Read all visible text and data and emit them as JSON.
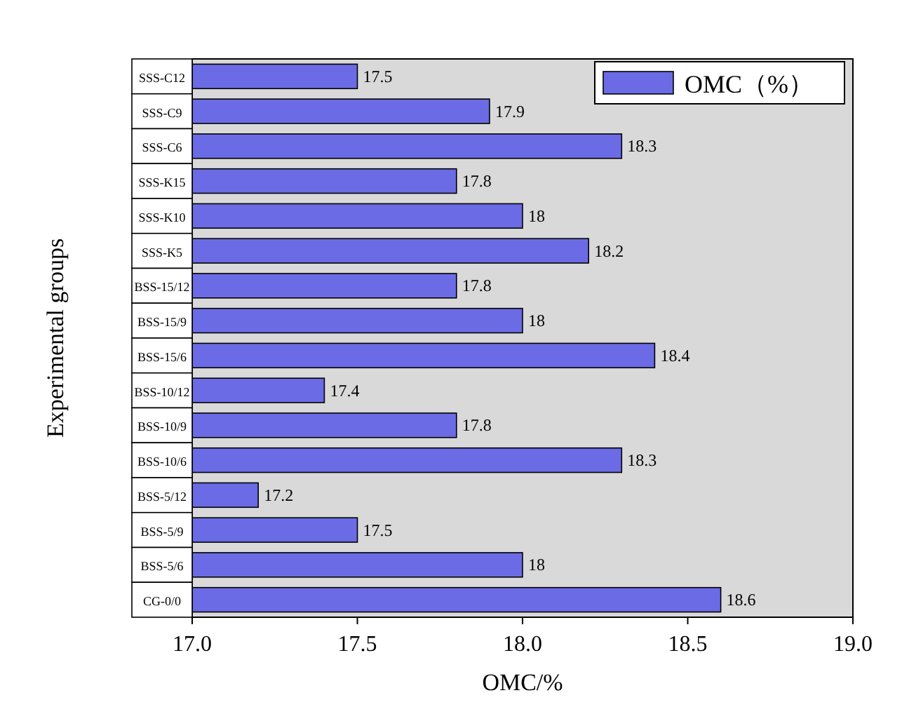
{
  "chart_data": {
    "type": "bar",
    "orientation": "horizontal",
    "xlabel": "OMC/%",
    "ylabel": "Experimental groups",
    "categories": [
      "SSS-C12",
      "SSS-C9",
      "SSS-C6",
      "SSS-K15",
      "SSS-K10",
      "SSS-K5",
      "BSS-15/12",
      "BSS-15/9",
      "BSS-15/6",
      "BSS-10/12",
      "BSS-10/9",
      "BSS-10/6",
      "BSS-5/12",
      "BSS-5/9",
      "BSS-5/6",
      "CG-0/0"
    ],
    "series": [
      {
        "name": "OMC（%）",
        "color": "#6b6be6",
        "values": [
          17.5,
          17.9,
          18.3,
          17.8,
          18,
          18.2,
          17.8,
          18,
          18.4,
          17.4,
          17.8,
          18.3,
          17.2,
          17.5,
          18,
          18.6
        ],
        "value_labels": [
          "17.5",
          "17.9",
          "18.3",
          "17.8",
          "18",
          "18.2",
          "17.8",
          "18",
          "18.4",
          "17.4",
          "17.8",
          "18.3",
          "17.2",
          "17.5",
          "18",
          "18.6"
        ]
      }
    ],
    "xlim": [
      17.0,
      19.0
    ],
    "xticks": [
      {
        "value": 17.0,
        "label": "17.0"
      },
      {
        "value": 17.5,
        "label": "17.5"
      },
      {
        "value": 18.0,
        "label": "18.0"
      },
      {
        "value": 18.5,
        "label": "18.5"
      },
      {
        "value": 19.0,
        "label": "19.0"
      }
    ],
    "legend": "top right"
  }
}
